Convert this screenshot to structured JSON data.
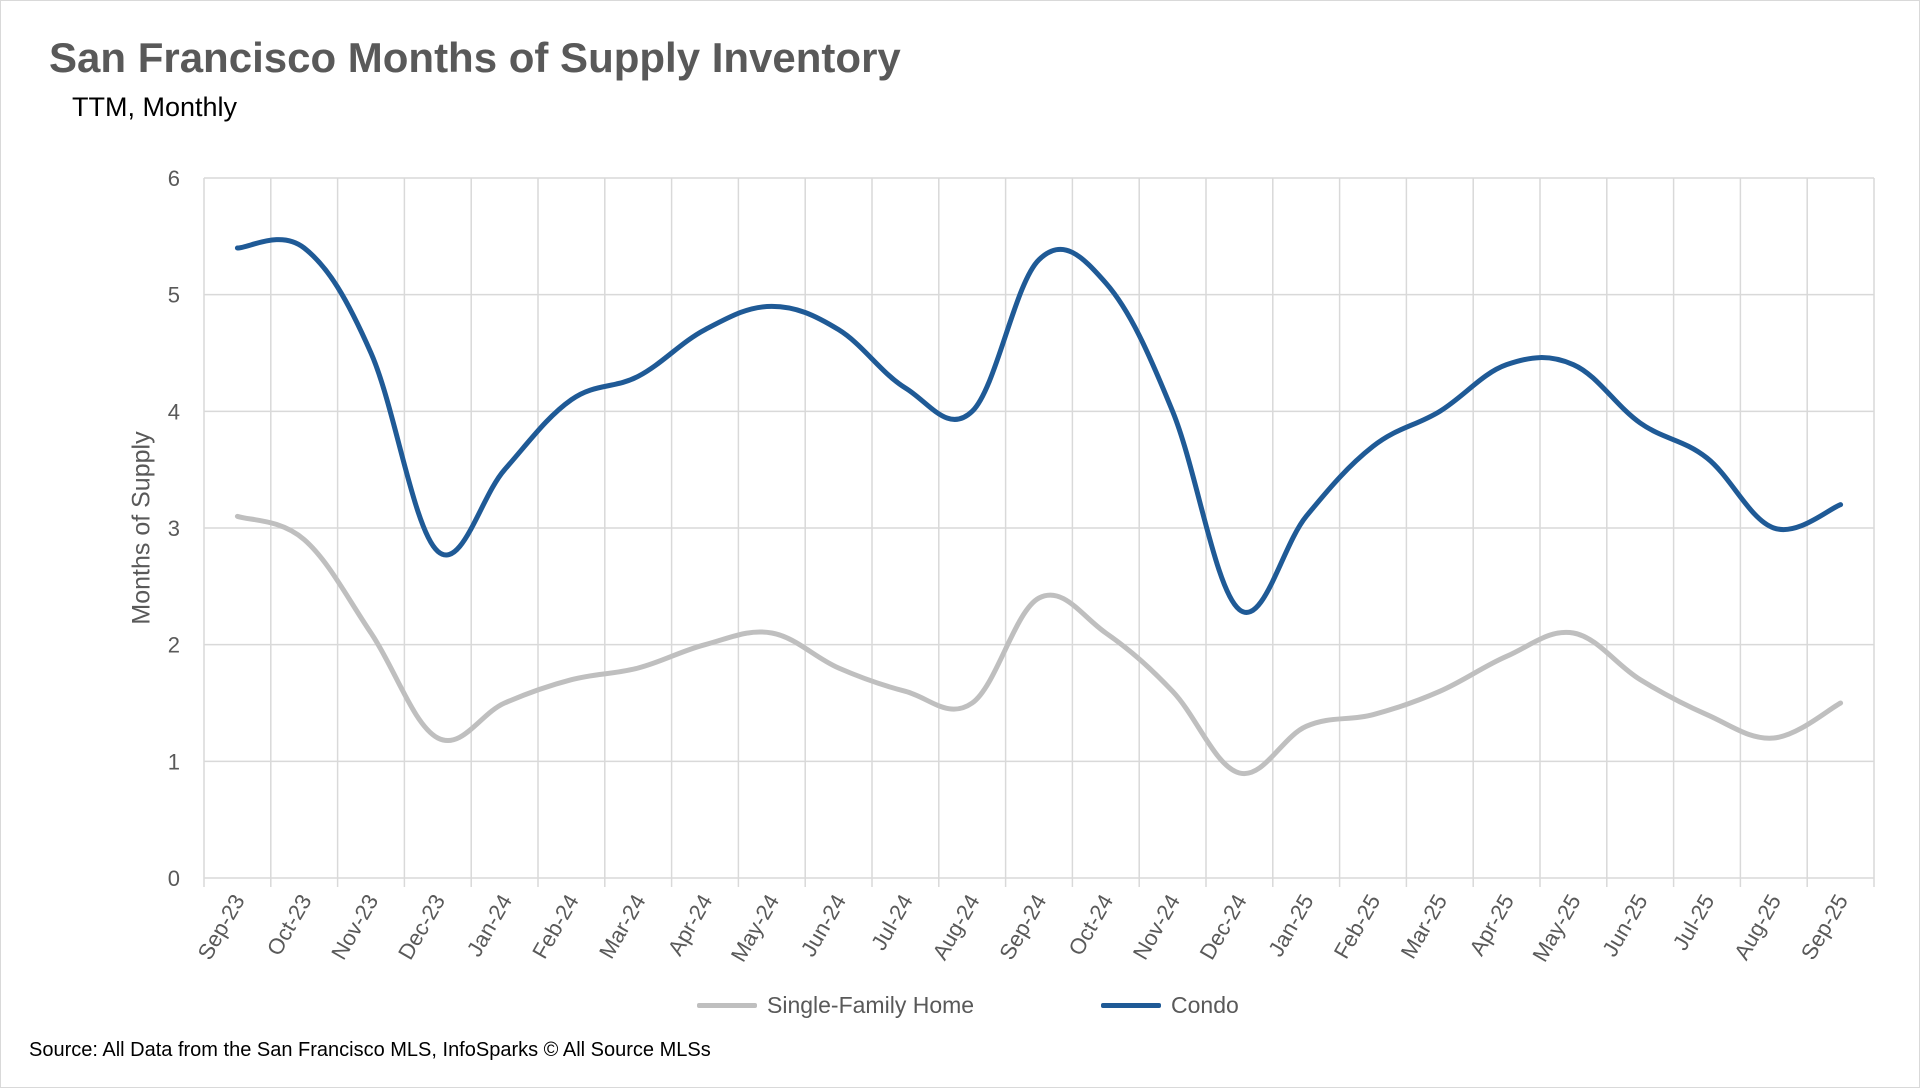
{
  "chart_data": {
    "type": "line",
    "title": "San Francisco Months of Supply Inventory",
    "subtitle": "TTM, Monthly",
    "ylabel": "Months of Supply",
    "xlabel": "",
    "ylim": [
      0,
      6
    ],
    "yticks": [
      "0",
      "1",
      "2",
      "3",
      "4",
      "5",
      "6"
    ],
    "grid": true,
    "legend_position": "bottom",
    "categories": [
      "Sep-23",
      "Oct-23",
      "Nov-23",
      "Dec-23",
      "Jan-24",
      "Feb-24",
      "Mar-24",
      "Apr-24",
      "May-24",
      "Jun-24",
      "Jul-24",
      "Aug-24",
      "Sep-24",
      "Oct-24",
      "Nov-24",
      "Dec-24",
      "Jan-25",
      "Feb-25",
      "Mar-25",
      "Apr-25",
      "May-25",
      "Jun-25",
      "Jul-25",
      "Aug-25",
      "Sep-25"
    ],
    "series": [
      {
        "name": "Single-Family Home",
        "color": "#bfbfbf",
        "values": [
          3.1,
          2.9,
          2.1,
          1.2,
          1.5,
          1.7,
          1.8,
          2.0,
          2.1,
          1.8,
          1.6,
          1.5,
          2.4,
          2.1,
          1.6,
          0.9,
          1.3,
          1.4,
          1.6,
          1.9,
          2.1,
          1.7,
          1.4,
          1.2,
          1.5
        ]
      },
      {
        "name": "Condo",
        "color": "#1f5a96",
        "values": [
          5.4,
          5.4,
          4.5,
          2.8,
          3.5,
          4.1,
          4.3,
          4.7,
          4.9,
          4.7,
          4.2,
          4.0,
          5.3,
          5.1,
          4.0,
          2.3,
          3.1,
          3.7,
          4.0,
          4.4,
          4.4,
          3.9,
          3.6,
          3.0,
          3.2
        ]
      }
    ],
    "source": "Source: All Data from the San Francisco MLS, InfoSparks © All Source MLSs"
  },
  "colors": {
    "grid": "#d9d9d9",
    "axis_text": "#595959",
    "title_text": "#595959"
  }
}
